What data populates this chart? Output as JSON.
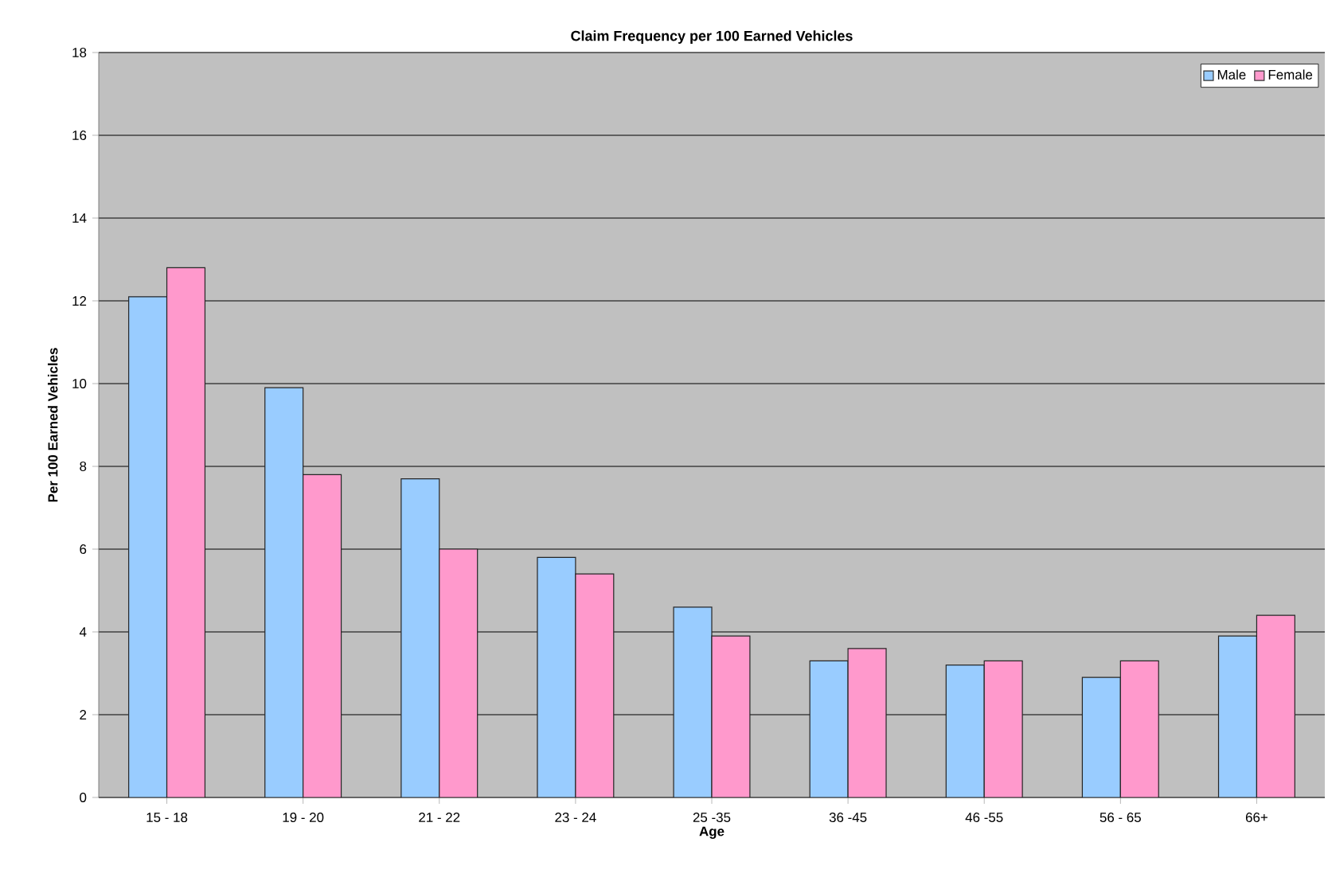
{
  "chart_data": {
    "type": "bar",
    "title": "Claim Frequency per 100 Earned Vehicles",
    "xlabel": "Age",
    "ylabel": "Per 100 Earned Vehicles",
    "categories": [
      "15 - 18",
      "19 - 20",
      "21 - 22",
      "23 - 24",
      "25 -35",
      "36 -45",
      "46 -55",
      "56 - 65",
      "66+"
    ],
    "series": [
      {
        "name": "Male",
        "color": "#99ccff",
        "values": [
          12.1,
          9.9,
          7.7,
          5.8,
          4.6,
          3.3,
          3.2,
          2.9,
          3.9
        ]
      },
      {
        "name": "Female",
        "color": "#ff99cc",
        "values": [
          12.8,
          7.8,
          6.0,
          5.4,
          3.9,
          3.6,
          3.3,
          3.3,
          4.4
        ]
      }
    ],
    "ylim": [
      0,
      18
    ],
    "yticks": [
      0,
      2,
      4,
      6,
      8,
      10,
      12,
      14,
      16,
      18
    ],
    "grid": "y",
    "legend": "top right"
  }
}
